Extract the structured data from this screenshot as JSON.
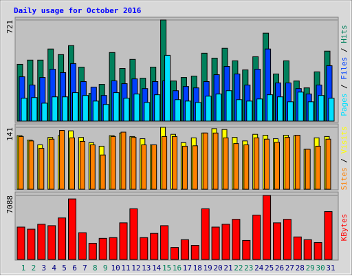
{
  "chart_data": [
    {
      "type": "bar",
      "title": "Daily usage for October 2016",
      "separator": "/",
      "ylim": [
        0,
        721
      ],
      "yticks": [
        721
      ],
      "grid": true,
      "series": [
        {
          "name": "Hits",
          "color": "#00805c",
          "values": [
            405,
            435,
            435,
            514,
            474,
            538,
            385,
            198,
            262,
            489,
            375,
            440,
            306,
            385,
            721,
            286,
            311,
            321,
            484,
            449,
            519,
            430,
            365,
            459,
            627,
            336,
            430,
            286,
            237,
            351,
            499
          ]
        },
        {
          "name": "Files",
          "color": "#0040ff",
          "values": [
            316,
            257,
            311,
            370,
            346,
            410,
            282,
            242,
            183,
            287,
            267,
            301,
            232,
            282,
            287,
            217,
            247,
            237,
            282,
            331,
            390,
            336,
            257,
            370,
            514,
            272,
            272,
            232,
            193,
            257,
            395
          ]
        },
        {
          "name": "Pages",
          "color": "#00e0ff",
          "values": [
            163,
            168,
            128,
            173,
            173,
            203,
            183,
            143,
            119,
            203,
            163,
            193,
            133,
            188,
            469,
            153,
            143,
            133,
            178,
            193,
            217,
            153,
            143,
            158,
            188,
            173,
            138,
            207,
            138,
            183,
            163
          ]
        }
      ]
    },
    {
      "type": "bar",
      "separator": "/",
      "ylim": [
        0,
        141
      ],
      "yticks": [
        141
      ],
      "grid": true,
      "series": [
        {
          "name": "Visits",
          "color": "#ffff00",
          "values": [
            122,
            112,
            101,
            118,
            122,
            133,
            118,
            106,
            98,
            122,
            128,
            120,
            115,
            101,
            141,
            125,
            106,
            117,
            128,
            138,
            136,
            118,
            110,
            125,
            123,
            115,
            123,
            122,
            91,
            117,
            120
          ]
        },
        {
          "name": "Sites",
          "color": "#ff8000",
          "values": [
            120,
            110,
            93,
            114,
            134,
            117,
            109,
            101,
            78,
            120,
            130,
            118,
            101,
            101,
            120,
            120,
            98,
            99,
            128,
            128,
            117,
            104,
            101,
            117,
            114,
            107,
            118,
            123,
            91,
            98,
            114
          ]
        }
      ]
    },
    {
      "type": "bar",
      "ylim": [
        0,
        7088
      ],
      "yticks": [
        7088
      ],
      "grid": true,
      "categories": [
        "1",
        "2",
        "3",
        "4",
        "5",
        "6",
        "7",
        "8",
        "9",
        "10",
        "11",
        "12",
        "13",
        "14",
        "15",
        "16",
        "17",
        "18",
        "19",
        "20",
        "21",
        "22",
        "23",
        "24",
        "25",
        "26",
        "27",
        "28",
        "29",
        "30",
        "31"
      ],
      "category_colors": [
        "#00805c",
        "#00805c",
        "#000080",
        "#000080",
        "#000080",
        "#000080",
        "#000080",
        "#00805c",
        "#00805c",
        "#000080",
        "#000080",
        "#000080",
        "#000080",
        "#000080",
        "#00805c",
        "#00805c",
        "#000080",
        "#000080",
        "#000080",
        "#000080",
        "#000080",
        "#00805c",
        "#00805c",
        "#000080",
        "#000080",
        "#000080",
        "#000080",
        "#000080",
        "#00805c",
        "#00805c",
        "#000080"
      ],
      "series": [
        {
          "name": "KBytes",
          "color": "#ff0000",
          "values": [
            3583,
            3350,
            3895,
            3739,
            4596,
            6699,
            2960,
            1792,
            2337,
            2415,
            4051,
            5609,
            2415,
            2882,
            3739,
            1324,
            2181,
            1558,
            5609,
            3583,
            3895,
            4440,
            2103,
            4908,
            7088,
            4051,
            4440,
            2493,
            2181,
            1870,
            5297
          ]
        }
      ]
    }
  ]
}
